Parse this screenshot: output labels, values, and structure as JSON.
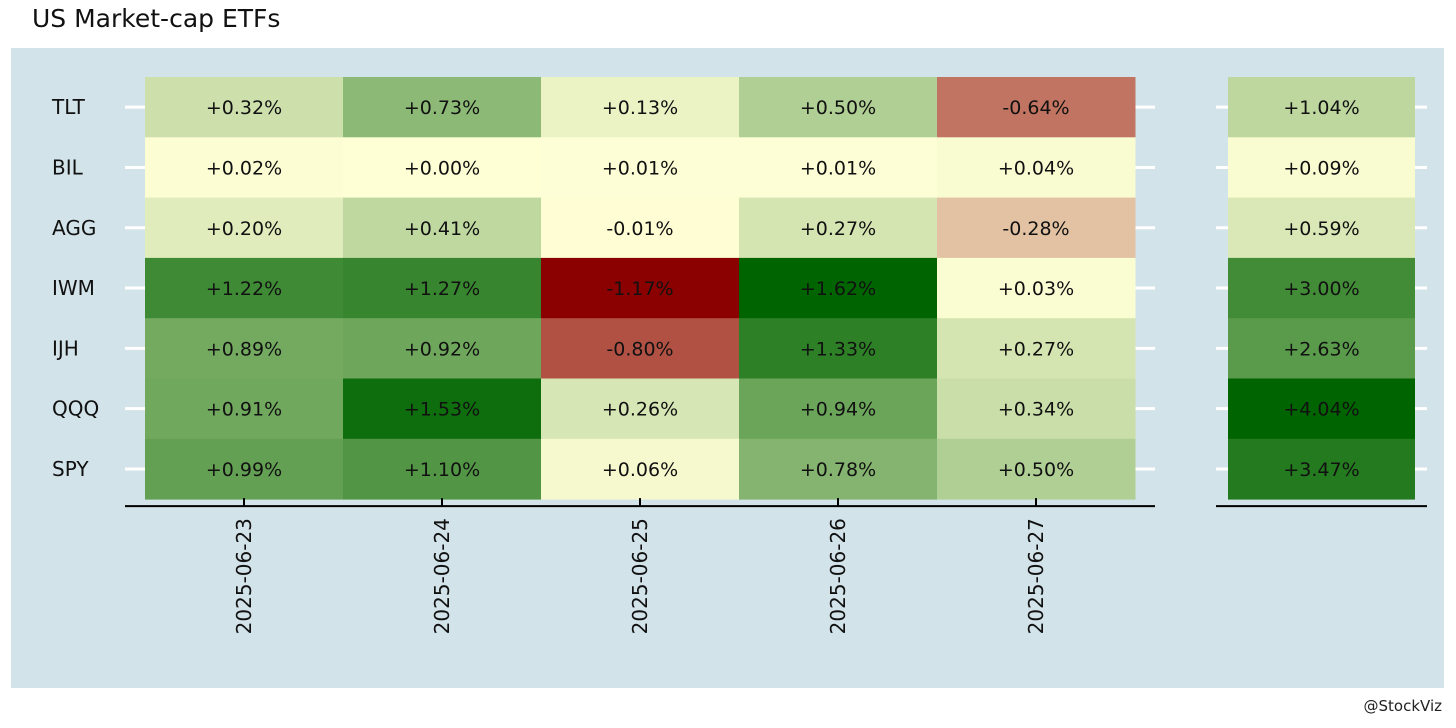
{
  "title": "US Market-cap ETFs",
  "credit": "@StockViz",
  "chart_data": {
    "type": "heatmap",
    "title": "US Market-cap ETFs",
    "rows": [
      "TLT",
      "BIL",
      "AGG",
      "IWM",
      "IJH",
      "QQQ",
      "SPY"
    ],
    "columns": [
      "2025-06-23",
      "2025-06-24",
      "2025-06-25",
      "2025-06-26",
      "2025-06-27"
    ],
    "values": [
      [
        0.32,
        0.73,
        0.13,
        0.5,
        -0.64
      ],
      [
        0.02,
        0.0,
        0.01,
        0.01,
        0.04
      ],
      [
        0.2,
        0.41,
        -0.01,
        0.27,
        -0.28
      ],
      [
        1.22,
        1.27,
        -1.17,
        1.62,
        0.03
      ],
      [
        0.89,
        0.92,
        -0.8,
        1.33,
        0.27
      ],
      [
        0.91,
        1.53,
        0.26,
        0.94,
        0.34
      ],
      [
        0.99,
        1.1,
        0.06,
        0.78,
        0.5
      ]
    ],
    "labels": [
      [
        "+0.32%",
        "+0.73%",
        "+0.13%",
        "+0.50%",
        "-0.64%"
      ],
      [
        "+0.02%",
        "+0.00%",
        "+0.01%",
        "+0.01%",
        "+0.04%"
      ],
      [
        "+0.20%",
        "+0.41%",
        "-0.01%",
        "+0.27%",
        "-0.28%"
      ],
      [
        "+1.22%",
        "+1.27%",
        "-1.17%",
        "+1.62%",
        "+0.03%"
      ],
      [
        "+0.89%",
        "+0.92%",
        "-0.80%",
        "+1.33%",
        "+0.27%"
      ],
      [
        "+0.91%",
        "+1.53%",
        "+0.26%",
        "+0.94%",
        "+0.34%"
      ],
      [
        "+0.99%",
        "+1.10%",
        "+0.06%",
        "+0.78%",
        "+0.50%"
      ]
    ],
    "totals": [
      1.04,
      0.09,
      0.59,
      3.0,
      2.63,
      4.04,
      3.47
    ],
    "total_labels": [
      "+1.04%",
      "+0.09%",
      "+0.59%",
      "+3.00%",
      "+2.63%",
      "+4.04%",
      "+3.47%"
    ],
    "colors": {
      "neutral": "#ffffd6",
      "positive": "#006400",
      "negative": "#8b0000",
      "panel_background": "#d3e3ea"
    }
  }
}
